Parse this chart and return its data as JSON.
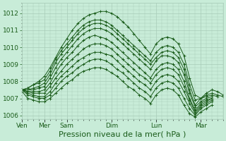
{
  "bg_color": "#c8ecd8",
  "grid_color": "#a8cbb8",
  "line_color": "#1a5c1a",
  "marker_color": "#1a5c1a",
  "xlabel": "Pression niveau de la mer( hPa )",
  "ylim": [
    1005.8,
    1012.6
  ],
  "yticks": [
    1006,
    1007,
    1008,
    1009,
    1010,
    1011,
    1012
  ],
  "day_labels": [
    "Ven",
    "Mer",
    "Sam",
    "Dim",
    "Lun",
    "Mar"
  ],
  "day_positions": [
    0,
    24,
    48,
    96,
    144,
    192
  ],
  "xlabel_fontsize": 8,
  "tick_fontsize": 6.5,
  "total_hours": 216,
  "lines": [
    {
      "x": [
        0,
        6,
        12,
        18,
        24,
        30,
        36,
        42,
        48,
        54,
        60,
        66,
        72,
        78,
        84,
        90,
        96,
        102,
        108,
        114,
        120,
        126,
        132,
        138,
        144,
        150,
        156,
        162,
        168,
        174,
        180,
        186,
        192,
        198,
        204,
        210,
        216
      ],
      "y": [
        1007.5,
        1007.6,
        1007.8,
        1008.0,
        1008.3,
        1008.8,
        1009.4,
        1010.0,
        1010.5,
        1011.0,
        1011.4,
        1011.7,
        1011.9,
        1012.0,
        1012.1,
        1012.1,
        1012.0,
        1011.8,
        1011.5,
        1011.2,
        1010.8,
        1010.4,
        1010.0,
        1009.6,
        1010.2,
        1010.5,
        1010.6,
        1010.5,
        1010.2,
        1009.5,
        1008.2,
        1007.2,
        1007.0,
        1007.3,
        1007.5,
        1007.4,
        1007.2
      ]
    },
    {
      "x": [
        0,
        6,
        12,
        18,
        24,
        30,
        36,
        42,
        48,
        54,
        60,
        66,
        72,
        78,
        84,
        90,
        96,
        102,
        108,
        114,
        120,
        126,
        132,
        138,
        144,
        150,
        156,
        162,
        168,
        174,
        180,
        186,
        192,
        198,
        204,
        210,
        216
      ],
      "y": [
        1007.5,
        1007.6,
        1007.8,
        1007.9,
        1008.1,
        1008.6,
        1009.3,
        1009.8,
        1010.2,
        1010.6,
        1011.0,
        1011.3,
        1011.5,
        1011.6,
        1011.6,
        1011.5,
        1011.3,
        1011.0,
        1010.7,
        1010.4,
        1010.1,
        1009.8,
        1009.5,
        1009.2,
        1009.7,
        1010.0,
        1010.1,
        1010.0,
        1009.7,
        1009.0,
        1007.8,
        1006.9,
        1007.0,
        1007.2,
        1007.3,
        1007.2,
        1007.1
      ]
    },
    {
      "x": [
        0,
        6,
        12,
        18,
        24,
        30,
        36,
        42,
        48,
        54,
        60,
        66,
        72,
        78,
        84,
        90,
        96,
        102,
        108,
        114,
        120,
        126,
        132,
        138,
        144,
        150,
        156,
        162,
        168,
        174,
        180,
        186,
        192,
        198,
        204,
        210
      ],
      "y": [
        1007.5,
        1007.5,
        1007.6,
        1007.7,
        1007.9,
        1008.4,
        1009.1,
        1009.6,
        1010.0,
        1010.4,
        1010.8,
        1011.1,
        1011.3,
        1011.4,
        1011.4,
        1011.3,
        1011.1,
        1010.8,
        1010.5,
        1010.2,
        1009.9,
        1009.6,
        1009.3,
        1009.0,
        1009.4,
        1009.7,
        1009.8,
        1009.7,
        1009.4,
        1008.7,
        1007.5,
        1006.6,
        1007.0,
        1007.1,
        1007.2,
        1007.1
      ]
    },
    {
      "x": [
        0,
        6,
        12,
        18,
        24,
        30,
        36,
        42,
        48,
        54,
        60,
        66,
        72,
        78,
        84,
        90,
        96,
        102,
        108,
        114,
        120,
        126,
        132,
        138,
        144,
        150,
        156,
        162,
        168,
        174,
        180,
        186,
        192,
        198,
        204
      ],
      "y": [
        1007.5,
        1007.5,
        1007.5,
        1007.6,
        1007.7,
        1008.2,
        1008.8,
        1009.3,
        1009.7,
        1010.1,
        1010.5,
        1010.8,
        1011.0,
        1011.1,
        1011.1,
        1011.0,
        1010.8,
        1010.5,
        1010.2,
        1009.9,
        1009.6,
        1009.3,
        1009.0,
        1008.7,
        1009.2,
        1009.5,
        1009.5,
        1009.4,
        1009.1,
        1008.4,
        1007.3,
        1006.5,
        1006.8,
        1007.0,
        1007.1
      ]
    },
    {
      "x": [
        0,
        6,
        12,
        18,
        24,
        30,
        36,
        42,
        48,
        54,
        60,
        66,
        72,
        78,
        84,
        90,
        96,
        102,
        108,
        114,
        120,
        126,
        132,
        138,
        144,
        150,
        156,
        162,
        168,
        174,
        180,
        186,
        192,
        198,
        204
      ],
      "y": [
        1007.5,
        1007.4,
        1007.4,
        1007.4,
        1007.5,
        1007.9,
        1008.5,
        1009.0,
        1009.4,
        1009.7,
        1010.1,
        1010.4,
        1010.6,
        1010.7,
        1010.6,
        1010.5,
        1010.3,
        1010.0,
        1009.7,
        1009.4,
        1009.1,
        1008.8,
        1008.5,
        1008.2,
        1008.7,
        1009.0,
        1009.1,
        1009.0,
        1008.7,
        1008.0,
        1007.0,
        1006.3,
        1006.7,
        1006.9,
        1007.0
      ]
    },
    {
      "x": [
        0,
        6,
        12,
        18,
        24,
        30,
        36,
        42,
        48,
        54,
        60,
        66,
        72,
        78,
        84,
        90,
        96,
        102,
        108,
        114,
        120,
        126,
        132,
        138,
        144,
        150,
        156,
        162,
        168,
        174,
        180,
        186,
        192,
        198,
        204
      ],
      "y": [
        1007.5,
        1007.4,
        1007.3,
        1007.3,
        1007.3,
        1007.7,
        1008.2,
        1008.6,
        1009.0,
        1009.3,
        1009.6,
        1009.9,
        1010.1,
        1010.2,
        1010.2,
        1010.1,
        1009.9,
        1009.6,
        1009.3,
        1009.0,
        1008.7,
        1008.4,
        1008.2,
        1007.9,
        1008.4,
        1008.7,
        1008.8,
        1008.7,
        1008.4,
        1007.7,
        1006.9,
        1006.2,
        1006.6,
        1006.8,
        1007.0
      ]
    },
    {
      "x": [
        0,
        6,
        12,
        18,
        24,
        30,
        36,
        42,
        48,
        54,
        60,
        66,
        72,
        78,
        84,
        90,
        96,
        102,
        108,
        114,
        120,
        126,
        132,
        138,
        144,
        150,
        156,
        162,
        168,
        174,
        180,
        186,
        192,
        198,
        204
      ],
      "y": [
        1007.5,
        1007.3,
        1007.2,
        1007.1,
        1007.1,
        1007.4,
        1007.9,
        1008.3,
        1008.6,
        1008.9,
        1009.2,
        1009.4,
        1009.6,
        1009.7,
        1009.7,
        1009.6,
        1009.5,
        1009.2,
        1008.9,
        1008.6,
        1008.3,
        1008.0,
        1007.8,
        1007.5,
        1008.0,
        1008.3,
        1008.4,
        1008.3,
        1008.0,
        1007.4,
        1006.7,
        1006.1,
        1006.5,
        1006.7,
        1006.9
      ]
    },
    {
      "x": [
        0,
        6,
        12,
        18,
        24,
        30,
        36,
        42,
        48,
        54,
        60,
        66,
        72,
        78,
        84,
        90,
        96,
        102,
        108,
        114,
        120,
        126,
        132,
        138,
        144,
        150,
        156,
        162,
        168,
        174,
        180,
        186,
        192,
        198,
        204
      ],
      "y": [
        1007.5,
        1007.2,
        1007.1,
        1007.0,
        1007.0,
        1007.2,
        1007.6,
        1008.0,
        1008.3,
        1008.5,
        1008.8,
        1009.0,
        1009.2,
        1009.3,
        1009.3,
        1009.2,
        1009.0,
        1008.7,
        1008.5,
        1008.2,
        1007.9,
        1007.6,
        1007.4,
        1007.1,
        1007.6,
        1007.9,
        1008.0,
        1007.9,
        1007.6,
        1007.0,
        1006.4,
        1006.0,
        1006.4,
        1006.6,
        1006.8
      ]
    },
    {
      "x": [
        0,
        6,
        12,
        18,
        24,
        30,
        36,
        42,
        48,
        54,
        60,
        66,
        72,
        78,
        84,
        90,
        96,
        102,
        108,
        114,
        120,
        126,
        132,
        138,
        144,
        150,
        156,
        162,
        168,
        174,
        180,
        186,
        192,
        198,
        204
      ],
      "y": [
        1007.4,
        1007.0,
        1006.9,
        1006.8,
        1006.8,
        1007.0,
        1007.3,
        1007.6,
        1007.9,
        1008.1,
        1008.4,
        1008.6,
        1008.7,
        1008.8,
        1008.8,
        1008.7,
        1008.5,
        1008.3,
        1008.0,
        1007.7,
        1007.5,
        1007.2,
        1007.0,
        1006.7,
        1007.2,
        1007.5,
        1007.6,
        1007.5,
        1007.2,
        1006.6,
        1006.1,
        1005.9,
        1006.2,
        1006.4,
        1006.6
      ]
    }
  ]
}
